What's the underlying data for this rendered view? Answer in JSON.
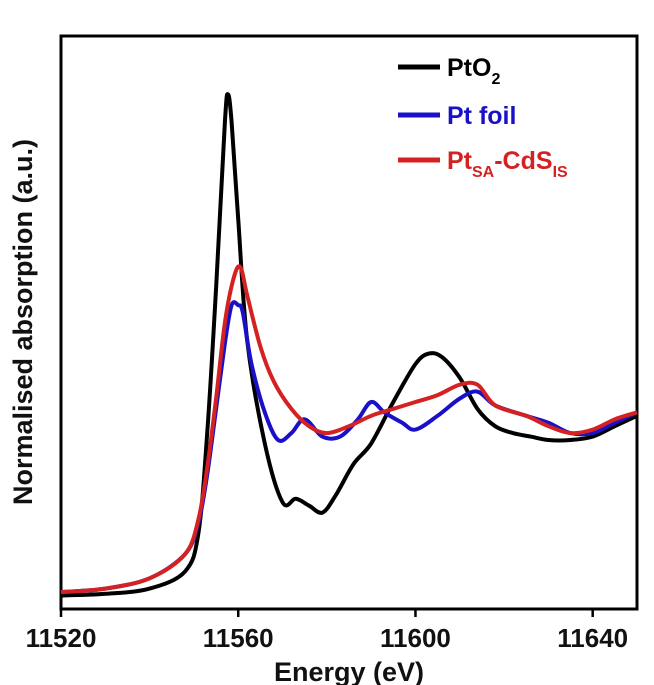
{
  "chart_data": {
    "type": "line",
    "title": "",
    "xlabel": "Energy (eV)",
    "ylabel": "Normalised absorption (a.u.)",
    "xlim": [
      11520,
      11650
    ],
    "ylim": [
      0,
      1.6
    ],
    "x_ticks": [
      11520,
      11560,
      11600,
      11640
    ],
    "x_tick_labels": [
      "11520",
      "11560",
      "11600",
      "11640"
    ],
    "y_ticks": [],
    "grid": false,
    "legend_position": "top-right",
    "series": [
      {
        "name": "PtO2",
        "legend": {
          "main": "PtO",
          "sub": "2",
          "tail": ""
        },
        "color": "#000000",
        "x": [
          11520,
          11530,
          11540,
          11548,
          11551,
          11553,
          11555,
          11557,
          11557.7,
          11558.5,
          11560,
          11562,
          11566,
          11570,
          11573,
          11576,
          11579,
          11582,
          11586,
          11590,
          11595,
          11600,
          11603,
          11606,
          11610,
          11614,
          11618,
          11622,
          11626,
          11630,
          11635,
          11640,
          11645,
          11650
        ],
        "y": [
          0.01,
          0.015,
          0.03,
          0.08,
          0.19,
          0.48,
          0.9,
          1.38,
          1.46,
          1.38,
          1.1,
          0.75,
          0.45,
          0.28,
          0.29,
          0.27,
          0.25,
          0.3,
          0.39,
          0.45,
          0.57,
          0.68,
          0.71,
          0.7,
          0.64,
          0.55,
          0.5,
          0.48,
          0.47,
          0.46,
          0.46,
          0.47,
          0.5,
          0.53
        ]
      },
      {
        "name": "Pt foil",
        "legend": {
          "main": "Pt foil",
          "sub": "",
          "tail": ""
        },
        "color": "#1a10c8",
        "x": [
          11520,
          11530,
          11540,
          11548,
          11551,
          11553,
          11555,
          11557,
          11558.5,
          11560,
          11561,
          11563,
          11566,
          11569,
          11572,
          11575,
          11579,
          11583,
          11587,
          11590,
          11593,
          11597,
          11600,
          11605,
          11610,
          11614,
          11618,
          11625,
          11630,
          11635,
          11640,
          11645,
          11650
        ],
        "y": [
          0.02,
          0.03,
          0.06,
          0.13,
          0.22,
          0.36,
          0.55,
          0.74,
          0.85,
          0.85,
          0.83,
          0.68,
          0.54,
          0.46,
          0.48,
          0.52,
          0.47,
          0.47,
          0.52,
          0.57,
          0.54,
          0.51,
          0.49,
          0.53,
          0.58,
          0.6,
          0.56,
          0.53,
          0.51,
          0.48,
          0.48,
          0.51,
          0.54
        ]
      },
      {
        "name": "PtSA-CdSIS",
        "legend": {
          "main": "Pt",
          "sub": "SA",
          "tail": "-CdS",
          "sub2": "IS"
        },
        "color": "#d42222",
        "x": [
          11520,
          11530,
          11540,
          11548,
          11551,
          11553,
          11555,
          11557,
          11559,
          11560.5,
          11562,
          11565,
          11568,
          11572,
          11576,
          11580,
          11585,
          11590,
          11595,
          11600,
          11605,
          11610,
          11614,
          11618,
          11625,
          11630,
          11635,
          11640,
          11645,
          11650
        ],
        "y": [
          0.02,
          0.03,
          0.06,
          0.13,
          0.23,
          0.38,
          0.58,
          0.8,
          0.93,
          0.96,
          0.88,
          0.73,
          0.63,
          0.55,
          0.5,
          0.48,
          0.5,
          0.53,
          0.55,
          0.57,
          0.59,
          0.62,
          0.62,
          0.56,
          0.53,
          0.5,
          0.48,
          0.49,
          0.52,
          0.54
        ]
      }
    ]
  }
}
